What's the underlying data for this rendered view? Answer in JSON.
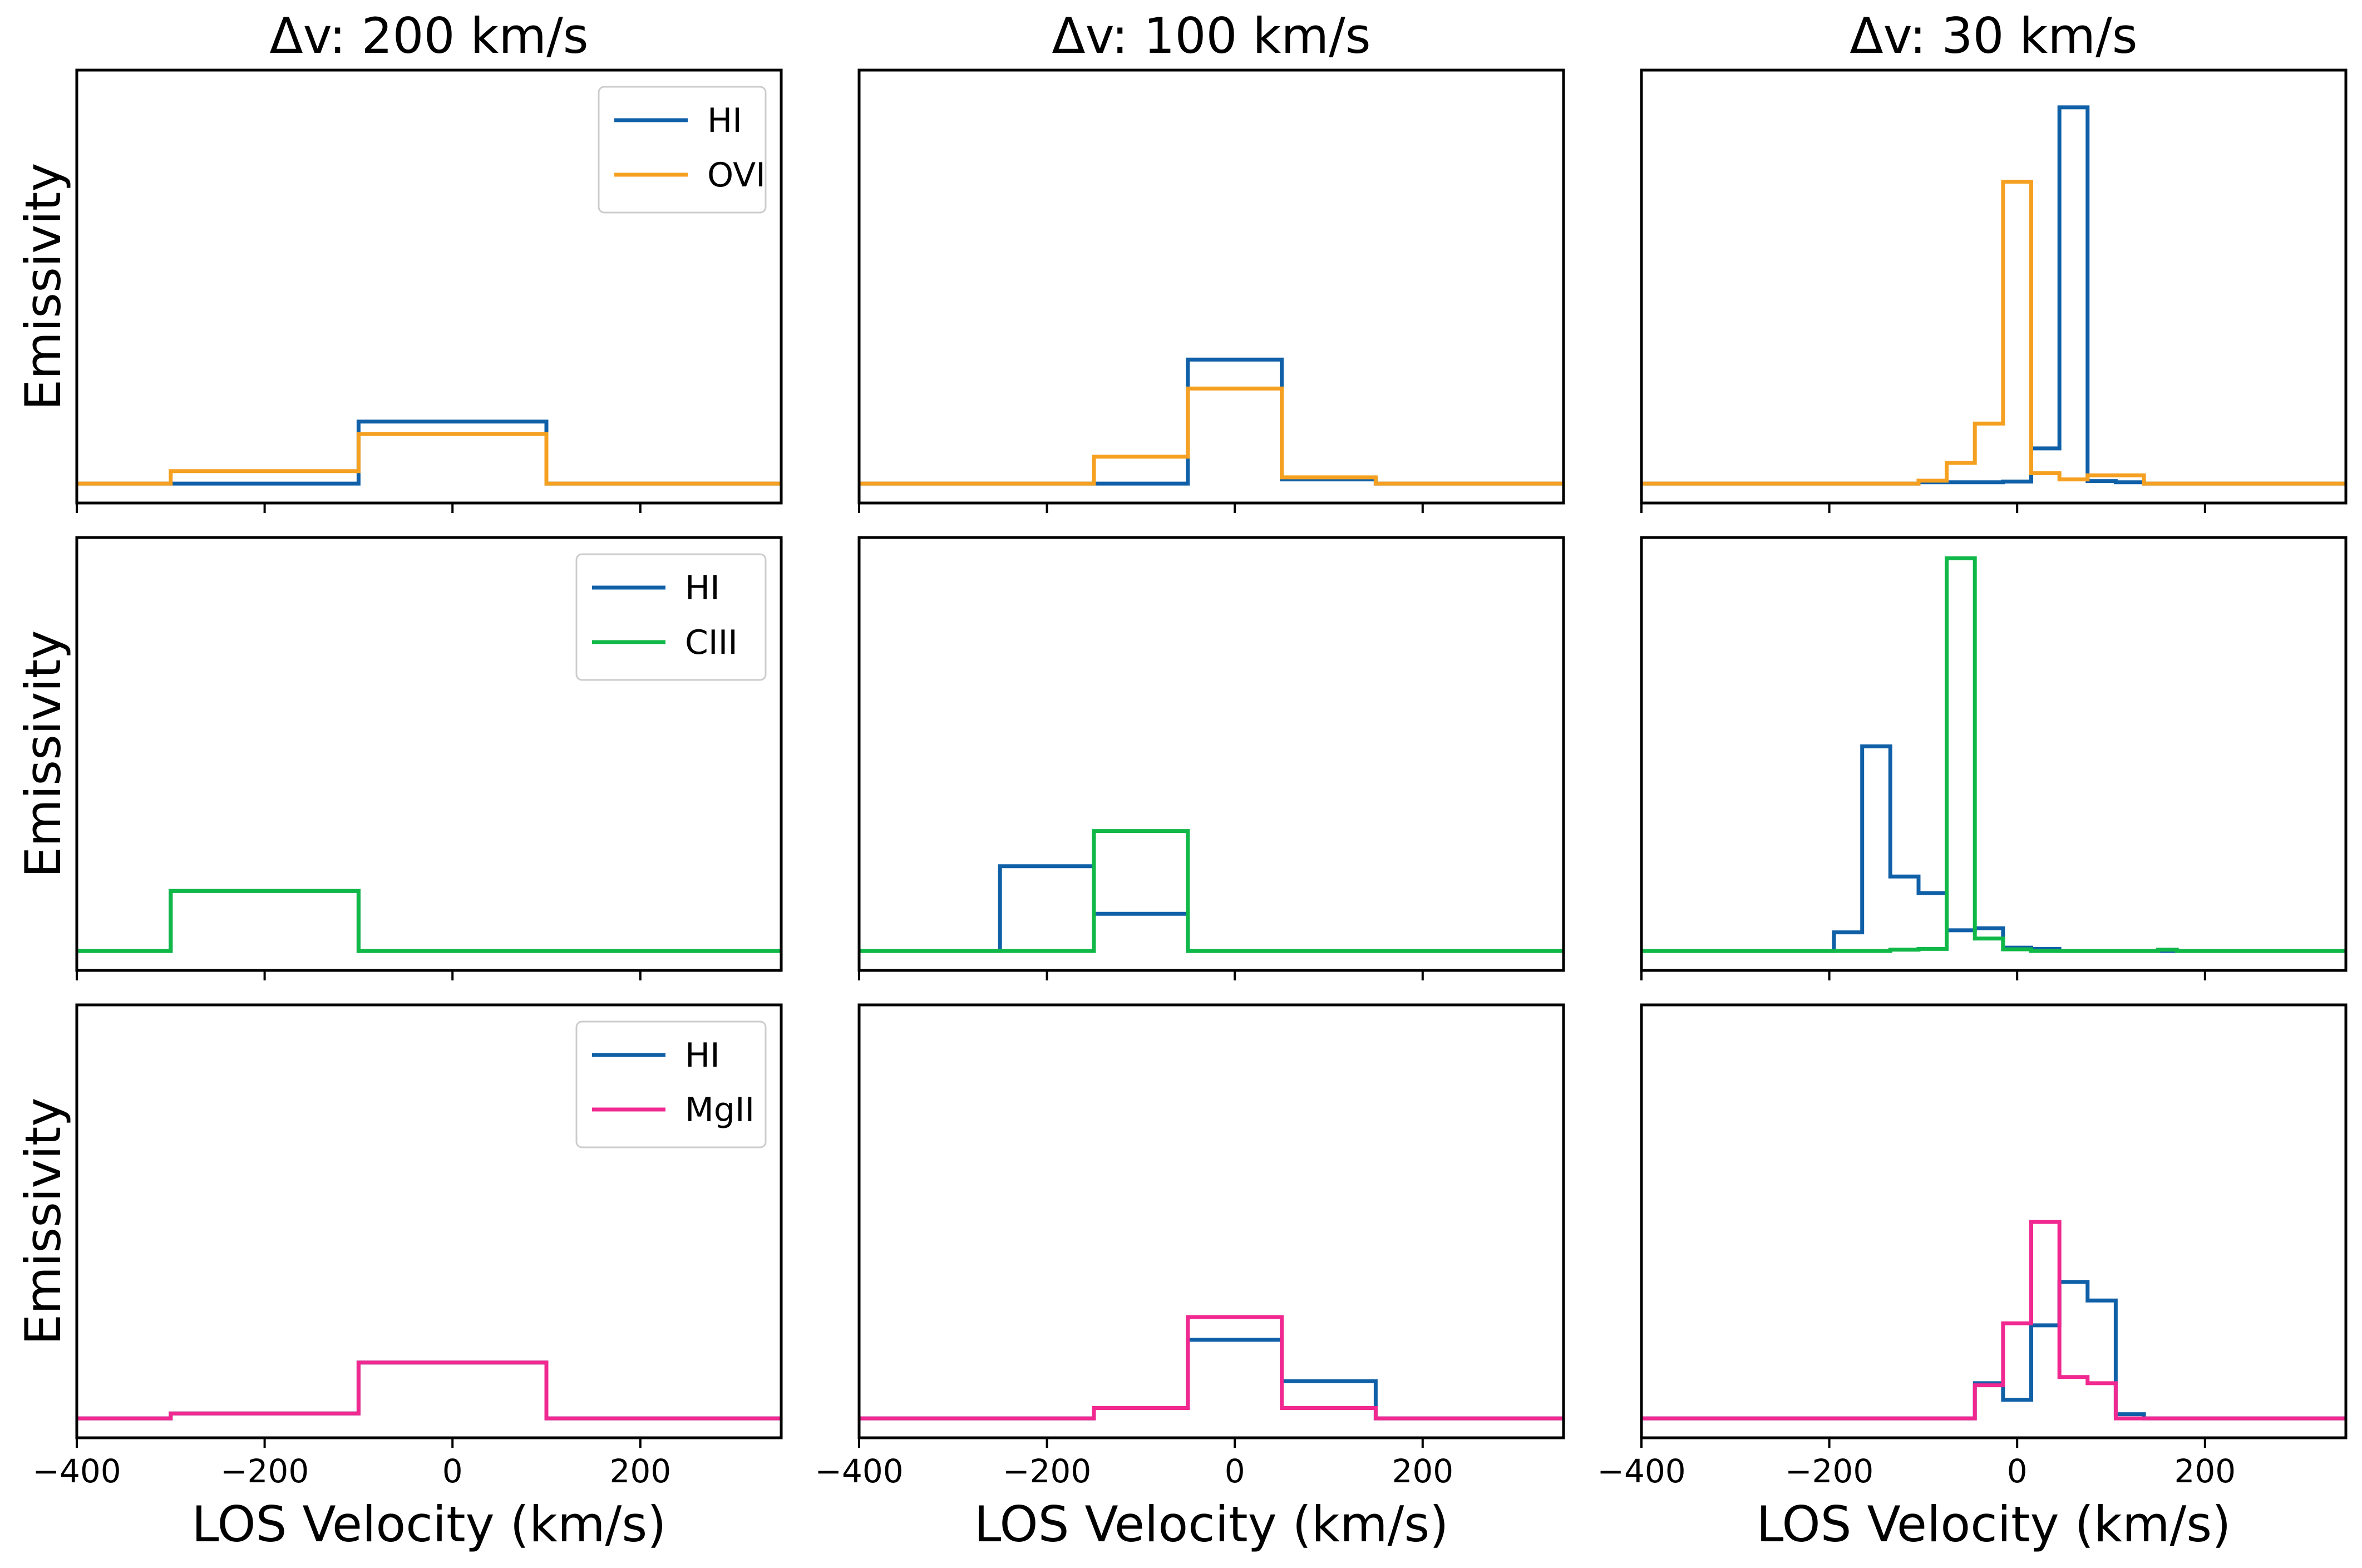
{
  "figure": {
    "column_titles": [
      "Δv: 200 km/s",
      "Δv: 100 km/s",
      "Δv: 30 km/s"
    ],
    "ylabel": "Emissivity",
    "xlabel": "LOS Velocity (km/s)",
    "colors": {
      "HI": "#1060a8",
      "OVI": "#f5a020",
      "CIII": "#10b848",
      "MgII": "#f02890"
    }
  },
  "chart_data": [
    {
      "type": "line",
      "step": true,
      "row": 0,
      "col": 0,
      "title": "Δv: 200 km/s",
      "xlim": [
        -400,
        350
      ],
      "ylim": [
        -0.047,
        1.0
      ],
      "legend": "top-right",
      "series": [
        {
          "name": "HI",
          "color": "#1060a8",
          "x": [
            -400,
            -300,
            -100,
            100,
            350
          ],
          "y": [
            0,
            0,
            0.15,
            0,
            0
          ]
        },
        {
          "name": "OVI",
          "color": "#f5a020",
          "x": [
            -400,
            -300,
            -100,
            100,
            350
          ],
          "y": [
            0,
            0.03,
            0.12,
            0,
            0
          ]
        }
      ]
    },
    {
      "type": "line",
      "step": true,
      "row": 0,
      "col": 1,
      "title": "Δv: 100 km/s",
      "xlim": [
        -400,
        350
      ],
      "ylim": [
        -0.047,
        1.0
      ],
      "series": [
        {
          "name": "HI",
          "color": "#1060a8",
          "x": [
            -400,
            -150,
            -50,
            50,
            150,
            350
          ],
          "y": [
            0,
            0,
            0.3,
            0.01,
            0,
            0
          ]
        },
        {
          "name": "OVI",
          "color": "#f5a020",
          "x": [
            -400,
            -150,
            -50,
            50,
            150,
            350
          ],
          "y": [
            0,
            0.065,
            0.23,
            0.015,
            0,
            0
          ]
        }
      ]
    },
    {
      "type": "line",
      "step": true,
      "row": 0,
      "col": 2,
      "title": "Δv: 30 km/s",
      "xlim": [
        -400,
        350
      ],
      "ylim": [
        -0.047,
        1.0
      ],
      "series": [
        {
          "name": "HI",
          "color": "#1060a8",
          "x": [
            -400,
            -105,
            -75,
            -45,
            -15,
            15,
            45,
            75,
            105,
            135,
            350
          ],
          "y": [
            0,
            0.003,
            0.003,
            0.003,
            0.005,
            0.085,
            0.91,
            0.006,
            0.003,
            0,
            0
          ]
        },
        {
          "name": "OVI",
          "color": "#f5a020",
          "x": [
            -400,
            -105,
            -75,
            -45,
            -15,
            15,
            45,
            75,
            105,
            135,
            350
          ],
          "y": [
            0,
            0.007,
            0.05,
            0.145,
            0.73,
            0.025,
            0.01,
            0.02,
            0.02,
            0,
            0
          ]
        }
      ]
    },
    {
      "type": "line",
      "step": true,
      "row": 1,
      "col": 0,
      "xlim": [
        -400,
        350
      ],
      "ylim": [
        -0.047,
        1.0
      ],
      "legend": "top-right",
      "series": [
        {
          "name": "HI",
          "color": "#1060a8",
          "x": [
            -400,
            -300,
            -100,
            350
          ],
          "y": [
            0,
            0.145,
            0,
            0
          ]
        },
        {
          "name": "CIII",
          "color": "#10b848",
          "x": [
            -400,
            -300,
            -100,
            350
          ],
          "y": [
            0,
            0.145,
            0,
            0
          ]
        }
      ]
    },
    {
      "type": "line",
      "step": true,
      "row": 1,
      "col": 1,
      "xlim": [
        -400,
        350
      ],
      "ylim": [
        -0.047,
        1.0
      ],
      "series": [
        {
          "name": "HI",
          "color": "#1060a8",
          "x": [
            -400,
            -250,
            -150,
            -50,
            350
          ],
          "y": [
            0,
            0.205,
            0.09,
            0,
            0
          ]
        },
        {
          "name": "CIII",
          "color": "#10b848",
          "x": [
            -400,
            -250,
            -150,
            -50,
            350
          ],
          "y": [
            0,
            0,
            0.29,
            0,
            0
          ]
        }
      ]
    },
    {
      "type": "line",
      "step": true,
      "row": 1,
      "col": 2,
      "xlim": [
        -400,
        350
      ],
      "ylim": [
        -0.047,
        1.0
      ],
      "series": [
        {
          "name": "HI",
          "color": "#1060a8",
          "x": [
            -400,
            -195,
            -165,
            -135,
            -105,
            -75,
            -45,
            -15,
            15,
            45,
            350
          ],
          "y": [
            0,
            0.045,
            0.495,
            0.18,
            0.14,
            0.05,
            0.055,
            0.008,
            0.005,
            0,
            0
          ]
        },
        {
          "name": "CIII",
          "color": "#10b848",
          "x": [
            -400,
            -135,
            -105,
            -75,
            -45,
            -15,
            15,
            150,
            170,
            350
          ],
          "y": [
            0,
            0.003,
            0.005,
            0.95,
            0.03,
            0.004,
            0,
            0.003,
            0,
            0
          ]
        }
      ]
    },
    {
      "type": "line",
      "step": true,
      "row": 2,
      "col": 0,
      "xlim": [
        -400,
        350
      ],
      "ylim": [
        -0.047,
        1.0
      ],
      "legend": "top-right",
      "series": [
        {
          "name": "HI",
          "color": "#1060a8",
          "x": [
            -400,
            -300,
            -100,
            100,
            350
          ],
          "y": [
            0,
            0.012,
            0.135,
            0,
            0
          ]
        },
        {
          "name": "MgII",
          "color": "#f02890",
          "x": [
            -400,
            -300,
            -100,
            100,
            350
          ],
          "y": [
            0,
            0.012,
            0.135,
            0,
            0
          ]
        }
      ]
    },
    {
      "type": "line",
      "step": true,
      "row": 2,
      "col": 1,
      "xlim": [
        -400,
        350
      ],
      "ylim": [
        -0.047,
        1.0
      ],
      "series": [
        {
          "name": "HI",
          "color": "#1060a8",
          "x": [
            -400,
            -150,
            -50,
            50,
            150,
            350
          ],
          "y": [
            0,
            0.025,
            0.19,
            0.09,
            0,
            0
          ]
        },
        {
          "name": "MgII",
          "color": "#f02890",
          "x": [
            -400,
            -150,
            -50,
            50,
            150,
            350
          ],
          "y": [
            0,
            0.025,
            0.245,
            0.025,
            0,
            0
          ]
        }
      ]
    },
    {
      "type": "line",
      "step": true,
      "row": 2,
      "col": 2,
      "xlim": [
        -400,
        350
      ],
      "ylim": [
        -0.047,
        1.0
      ],
      "series": [
        {
          "name": "HI",
          "color": "#1060a8",
          "x": [
            -400,
            -45,
            -15,
            15,
            45,
            75,
            105,
            135,
            350
          ],
          "y": [
            0,
            0.085,
            0.045,
            0.225,
            0.33,
            0.285,
            0.01,
            0,
            0
          ]
        },
        {
          "name": "MgII",
          "color": "#f02890",
          "x": [
            -400,
            -45,
            -15,
            15,
            45,
            75,
            105,
            350
          ],
          "y": [
            0,
            0.08,
            0.23,
            0.475,
            0.1,
            0.085,
            0,
            0
          ]
        }
      ]
    }
  ]
}
